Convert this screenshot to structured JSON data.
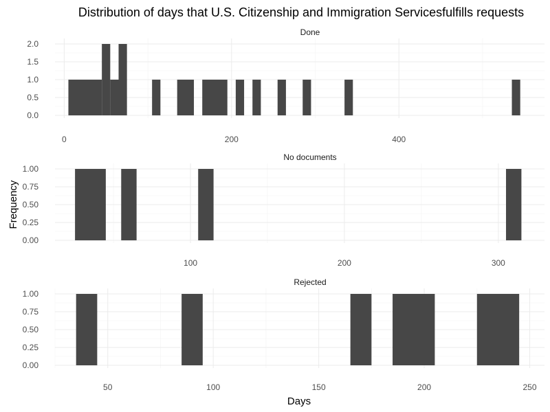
{
  "chart_data": {
    "type": "bar",
    "title": "Distribution of days that U.S. Citizenship and Immigration Servicesfulfills requests",
    "xlabel": "Days",
    "ylabel": "Frequency",
    "bar_color": "#474747",
    "grid_color": "#ebebeb",
    "background": "#ffffff",
    "grid": true,
    "panels": [
      {
        "label": "Done",
        "xlim": [
          -11,
          574
        ],
        "ylim": [
          0,
          2
        ],
        "x_ticks": [
          0,
          200,
          400
        ],
        "y_ticks": [
          0,
          0.5,
          1,
          1.5,
          2
        ],
        "y_tick_labels": [
          "0.0",
          "0.5",
          "1.0",
          "1.5",
          "2.0"
        ],
        "bars": [
          {
            "x0": 5,
            "x1": 45,
            "y": 1
          },
          {
            "x0": 45,
            "x1": 55,
            "y": 2
          },
          {
            "x0": 55,
            "x1": 65,
            "y": 1
          },
          {
            "x0": 65,
            "x1": 75,
            "y": 2
          },
          {
            "x0": 105,
            "x1": 115,
            "y": 1
          },
          {
            "x0": 135,
            "x1": 155,
            "y": 1
          },
          {
            "x0": 165,
            "x1": 195,
            "y": 1
          },
          {
            "x0": 205,
            "x1": 215,
            "y": 1
          },
          {
            "x0": 225,
            "x1": 235,
            "y": 1
          },
          {
            "x0": 255,
            "x1": 265,
            "y": 1
          },
          {
            "x0": 285,
            "x1": 295,
            "y": 1
          },
          {
            "x0": 335,
            "x1": 345,
            "y": 1
          },
          {
            "x0": 535,
            "x1": 545,
            "y": 1
          }
        ]
      },
      {
        "label": "No documents",
        "xlim": [
          12,
          330
        ],
        "ylim": [
          0,
          1
        ],
        "x_ticks": [
          100,
          200,
          300
        ],
        "y_ticks": [
          0,
          0.25,
          0.5,
          0.75,
          1
        ],
        "y_tick_labels": [
          "0.00",
          "0.25",
          "0.50",
          "0.75",
          "1.00"
        ],
        "bars": [
          {
            "x0": 25,
            "x1": 45,
            "y": 1
          },
          {
            "x0": 55,
            "x1": 65,
            "y": 1
          },
          {
            "x0": 105,
            "x1": 115,
            "y": 1
          },
          {
            "x0": 305,
            "x1": 315,
            "y": 1
          }
        ]
      },
      {
        "label": "Rejected",
        "xlim": [
          25,
          257
        ],
        "ylim": [
          0,
          1
        ],
        "x_ticks": [
          50,
          100,
          150,
          200,
          250
        ],
        "y_ticks": [
          0,
          0.25,
          0.5,
          0.75,
          1
        ],
        "y_tick_labels": [
          "0.00",
          "0.25",
          "0.50",
          "0.75",
          "1.00"
        ],
        "bars": [
          {
            "x0": 35,
            "x1": 45,
            "y": 1
          },
          {
            "x0": 85,
            "x1": 95,
            "y": 1
          },
          {
            "x0": 165,
            "x1": 175,
            "y": 1
          },
          {
            "x0": 185,
            "x1": 205,
            "y": 1
          },
          {
            "x0": 225,
            "x1": 245,
            "y": 1
          }
        ]
      }
    ]
  }
}
